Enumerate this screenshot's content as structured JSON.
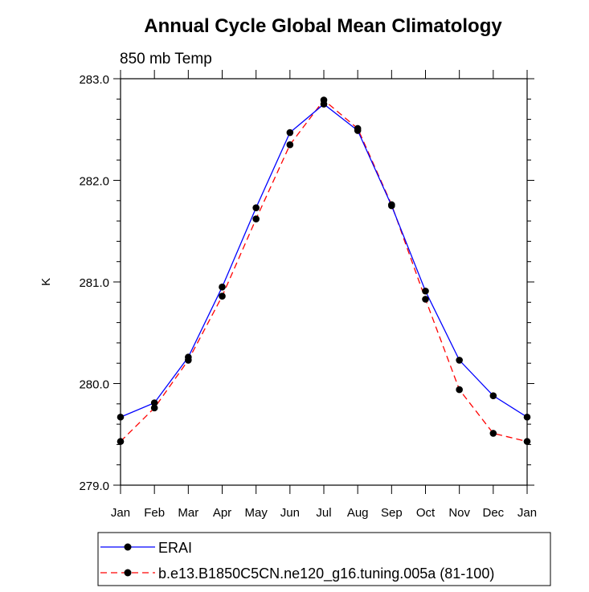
{
  "chart_data": {
    "type": "line",
    "title": "Annual Cycle Global Mean Climatology",
    "subtitle": "850 mb Temp",
    "ylabel": "K",
    "xlabel": "",
    "categories": [
      "Jan",
      "Feb",
      "Mar",
      "Apr",
      "May",
      "Jun",
      "Jul",
      "Aug",
      "Sep",
      "Oct",
      "Nov",
      "Dec",
      "Jan"
    ],
    "ylim": [
      279.0,
      283.0
    ],
    "yticks": [
      "279.0",
      "280.0",
      "281.0",
      "282.0",
      "283.0"
    ],
    "yminor_step": 0.2,
    "legend_position": "bottom",
    "series": [
      {
        "name": "ERAI",
        "color": "#0000ff",
        "style": "solid",
        "marker": "circle",
        "values": [
          279.67,
          279.81,
          280.26,
          280.95,
          281.73,
          282.47,
          282.75,
          282.49,
          281.75,
          280.91,
          280.23,
          279.88,
          279.67
        ]
      },
      {
        "name": "b.e13.B1850C5CN.ne120_g16.tuning.005a (81-100)",
        "color": "#ff0000",
        "style": "dashed",
        "marker": "circle",
        "values": [
          279.43,
          279.76,
          280.23,
          280.86,
          281.62,
          282.35,
          282.79,
          282.51,
          281.76,
          280.83,
          279.94,
          279.51,
          279.43
        ]
      }
    ]
  }
}
